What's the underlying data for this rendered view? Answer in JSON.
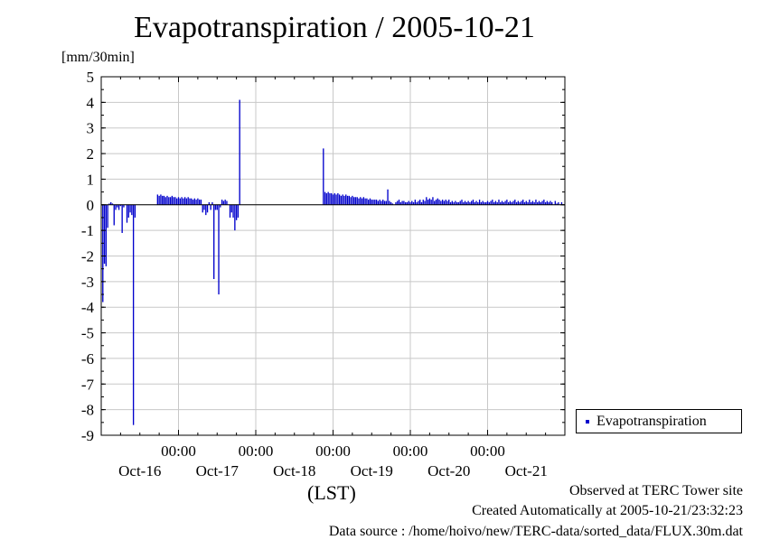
{
  "chart_data": {
    "type": "bar",
    "title": "Evapotranspiration / 2005-10-21",
    "ylabel": "[mm/30min]",
    "xlabel": "(LST)",
    "ylim": [
      -9,
      5
    ],
    "yticks": [
      5,
      4,
      3,
      2,
      1,
      0,
      -1,
      -2,
      -3,
      -4,
      -5,
      -6,
      -7,
      -8,
      -9
    ],
    "xlim": [
      0,
      144
    ],
    "x_time_ticks": [
      {
        "x": 24,
        "label": "00:00"
      },
      {
        "x": 48,
        "label": "00:00"
      },
      {
        "x": 72,
        "label": "00:00"
      },
      {
        "x": 96,
        "label": "00:00"
      },
      {
        "x": 120,
        "label": "00:00"
      }
    ],
    "x_day_labels": [
      {
        "x": 12,
        "label": "Oct-16"
      },
      {
        "x": 36,
        "label": "Oct-17"
      },
      {
        "x": 60,
        "label": "Oct-18"
      },
      {
        "x": 84,
        "label": "Oct-19"
      },
      {
        "x": 108,
        "label": "Oct-20"
      },
      {
        "x": 132,
        "label": "Oct-21"
      }
    ],
    "grid": true,
    "legend_position": "right",
    "series": [
      {
        "name": "Evapotranspiration",
        "color": "#0000cc",
        "points": [
          [
            0.5,
            -3.8
          ],
          [
            1,
            -2.3
          ],
          [
            1.5,
            -2.4
          ],
          [
            2,
            -0.9
          ],
          [
            2.5,
            0.05
          ],
          [
            3,
            0.1
          ],
          [
            3.5,
            0.05
          ],
          [
            4,
            -0.8
          ],
          [
            4.5,
            -0.2
          ],
          [
            5,
            -0.1
          ],
          [
            5.5,
            -0.2
          ],
          [
            6,
            -0.05
          ],
          [
            6.5,
            -1.1
          ],
          [
            7,
            -0.1
          ],
          [
            8,
            -0.7
          ],
          [
            8.5,
            -0.5
          ],
          [
            9,
            -0.3
          ],
          [
            9.5,
            -0.4
          ],
          [
            10,
            -8.6
          ],
          [
            10.5,
            -0.5
          ],
          [
            17.5,
            0.4
          ],
          [
            18,
            0.35
          ],
          [
            18.5,
            0.4
          ],
          [
            19,
            0.35
          ],
          [
            19.5,
            0.35
          ],
          [
            20,
            0.3
          ],
          [
            20.5,
            0.35
          ],
          [
            21,
            0.3
          ],
          [
            21.5,
            0.3
          ],
          [
            22,
            0.35
          ],
          [
            22.5,
            0.3
          ],
          [
            23,
            0.3
          ],
          [
            23.5,
            0.25
          ],
          [
            24,
            0.3
          ],
          [
            24.5,
            0.25
          ],
          [
            25,
            0.3
          ],
          [
            25.5,
            0.25
          ],
          [
            26,
            0.3
          ],
          [
            26.5,
            0.25
          ],
          [
            27,
            0.3
          ],
          [
            27.5,
            0.25
          ],
          [
            28,
            0.25
          ],
          [
            28.5,
            0.2
          ],
          [
            29,
            0.25
          ],
          [
            29.5,
            0.2
          ],
          [
            30,
            0.25
          ],
          [
            30.5,
            0.2
          ],
          [
            31,
            0.2
          ],
          [
            31.5,
            -0.3
          ],
          [
            32,
            -0.2
          ],
          [
            32.5,
            -0.4
          ],
          [
            33,
            -0.3
          ],
          [
            33.5,
            0.1
          ],
          [
            34,
            -0.2
          ],
          [
            34.5,
            0.1
          ],
          [
            35,
            -2.9
          ],
          [
            35.5,
            -0.2
          ],
          [
            36,
            -0.2
          ],
          [
            36.5,
            -3.5
          ],
          [
            37,
            -0.1
          ],
          [
            37.5,
            0.2
          ],
          [
            38,
            0.15
          ],
          [
            38.5,
            0.2
          ],
          [
            39,
            0.15
          ],
          [
            40,
            -0.5
          ],
          [
            40.5,
            -0.3
          ],
          [
            41,
            -0.5
          ],
          [
            41.5,
            -1.0
          ],
          [
            42,
            -0.6
          ],
          [
            42.5,
            -0.5
          ],
          [
            43,
            4.1
          ],
          [
            69,
            2.2
          ],
          [
            69.5,
            0.5
          ],
          [
            70,
            0.45
          ],
          [
            70.5,
            0.5
          ],
          [
            71,
            0.45
          ],
          [
            71.5,
            0.45
          ],
          [
            72,
            0.4
          ],
          [
            72.5,
            0.45
          ],
          [
            73,
            0.4
          ],
          [
            73.5,
            0.45
          ],
          [
            74,
            0.4
          ],
          [
            74.5,
            0.35
          ],
          [
            75,
            0.4
          ],
          [
            75.5,
            0.35
          ],
          [
            76,
            0.4
          ],
          [
            76.5,
            0.35
          ],
          [
            77,
            0.35
          ],
          [
            77.5,
            0.3
          ],
          [
            78,
            0.35
          ],
          [
            78.5,
            0.3
          ],
          [
            79,
            0.3
          ],
          [
            79.5,
            0.3
          ],
          [
            80,
            0.25
          ],
          [
            80.5,
            0.3
          ],
          [
            81,
            0.25
          ],
          [
            81.5,
            0.3
          ],
          [
            82,
            0.25
          ],
          [
            82.5,
            0.25
          ],
          [
            83,
            0.2
          ],
          [
            83.5,
            0.25
          ],
          [
            84,
            0.2
          ],
          [
            84.5,
            0.2
          ],
          [
            85,
            0.2
          ],
          [
            85.5,
            0.2
          ],
          [
            86,
            0.15
          ],
          [
            86.5,
            0.2
          ],
          [
            87,
            0.15
          ],
          [
            87.5,
            0.2
          ],
          [
            88,
            0.15
          ],
          [
            88.5,
            0.15
          ],
          [
            89,
            0.6
          ],
          [
            89.5,
            0.15
          ],
          [
            90,
            0.1
          ],
          [
            90.5,
            0.05
          ],
          [
            91.5,
            0.1
          ],
          [
            92,
            0.15
          ],
          [
            92.5,
            0.2
          ],
          [
            93,
            0.1
          ],
          [
            93.5,
            0.15
          ],
          [
            94,
            0.15
          ],
          [
            94.5,
            0.1
          ],
          [
            95,
            0.1
          ],
          [
            95.5,
            0.15
          ],
          [
            96,
            0.1
          ],
          [
            96.5,
            0.15
          ],
          [
            97,
            0.1
          ],
          [
            97.5,
            0.2
          ],
          [
            98,
            0.1
          ],
          [
            98.5,
            0.15
          ],
          [
            99,
            0.2
          ],
          [
            99.5,
            0.1
          ],
          [
            100,
            0.2
          ],
          [
            100.5,
            0.15
          ],
          [
            101,
            0.3
          ],
          [
            101.5,
            0.2
          ],
          [
            102,
            0.25
          ],
          [
            102.5,
            0.2
          ],
          [
            103,
            0.3
          ],
          [
            103.5,
            0.15
          ],
          [
            104,
            0.2
          ],
          [
            104.5,
            0.25
          ],
          [
            105,
            0.2
          ],
          [
            105.5,
            0.15
          ],
          [
            106,
            0.2
          ],
          [
            106.5,
            0.15
          ],
          [
            107,
            0.2
          ],
          [
            107.5,
            0.15
          ],
          [
            108,
            0.2
          ],
          [
            108.5,
            0.1
          ],
          [
            109,
            0.15
          ],
          [
            109.5,
            0.1
          ],
          [
            110,
            0.15
          ],
          [
            110.5,
            0.1
          ],
          [
            111,
            0.1
          ],
          [
            111.5,
            0.15
          ],
          [
            112,
            0.2
          ],
          [
            112.5,
            0.1
          ],
          [
            113,
            0.15
          ],
          [
            113.5,
            0.1
          ],
          [
            114,
            0.15
          ],
          [
            114.5,
            0.1
          ],
          [
            115,
            0.15
          ],
          [
            115.5,
            0.2
          ],
          [
            116,
            0.1
          ],
          [
            116.5,
            0.15
          ],
          [
            117,
            0.1
          ],
          [
            117.5,
            0.2
          ],
          [
            118,
            0.1
          ],
          [
            118.5,
            0.15
          ],
          [
            119,
            0.1
          ],
          [
            119.5,
            0.1
          ],
          [
            120,
            0.15
          ],
          [
            120.5,
            0.1
          ],
          [
            121,
            0.15
          ],
          [
            121.5,
            0.2
          ],
          [
            122,
            0.1
          ],
          [
            122.5,
            0.15
          ],
          [
            123,
            0.1
          ],
          [
            123.5,
            0.2
          ],
          [
            124,
            0.1
          ],
          [
            124.5,
            0.15
          ],
          [
            125,
            0.1
          ],
          [
            125.5,
            0.15
          ],
          [
            126,
            0.2
          ],
          [
            126.5,
            0.1
          ],
          [
            127,
            0.15
          ],
          [
            127.5,
            0.1
          ],
          [
            128,
            0.15
          ],
          [
            128.5,
            0.2
          ],
          [
            129,
            0.1
          ],
          [
            129.5,
            0.15
          ],
          [
            130,
            0.1
          ],
          [
            130.5,
            0.15
          ],
          [
            131,
            0.2
          ],
          [
            131.5,
            0.1
          ],
          [
            132,
            0.15
          ],
          [
            132.5,
            0.1
          ],
          [
            133,
            0.2
          ],
          [
            133.5,
            0.1
          ],
          [
            134,
            0.15
          ],
          [
            134.5,
            0.1
          ],
          [
            135,
            0.2
          ],
          [
            135.5,
            0.1
          ],
          [
            136,
            0.15
          ],
          [
            136.5,
            0.1
          ],
          [
            137,
            0.15
          ],
          [
            137.5,
            0.2
          ],
          [
            138,
            0.1
          ],
          [
            138.5,
            0.15
          ],
          [
            139,
            0.1
          ],
          [
            139.5,
            0.15
          ],
          [
            140,
            0.1
          ],
          [
            141,
            0.15
          ],
          [
            141.5,
            0.05
          ],
          [
            142,
            0.1
          ],
          [
            143,
            0.1
          ]
        ]
      }
    ]
  },
  "legend": {
    "label": "Evapotranspiration",
    "color": "#0000cc"
  },
  "footer": {
    "observed": "Observed at TERC Tower site",
    "created": "Created Automatically at 2005-10-21/23:32:23",
    "source": "Data source : /home/hoivo/new/TERC-data/sorted_data/FLUX.30m.dat"
  }
}
